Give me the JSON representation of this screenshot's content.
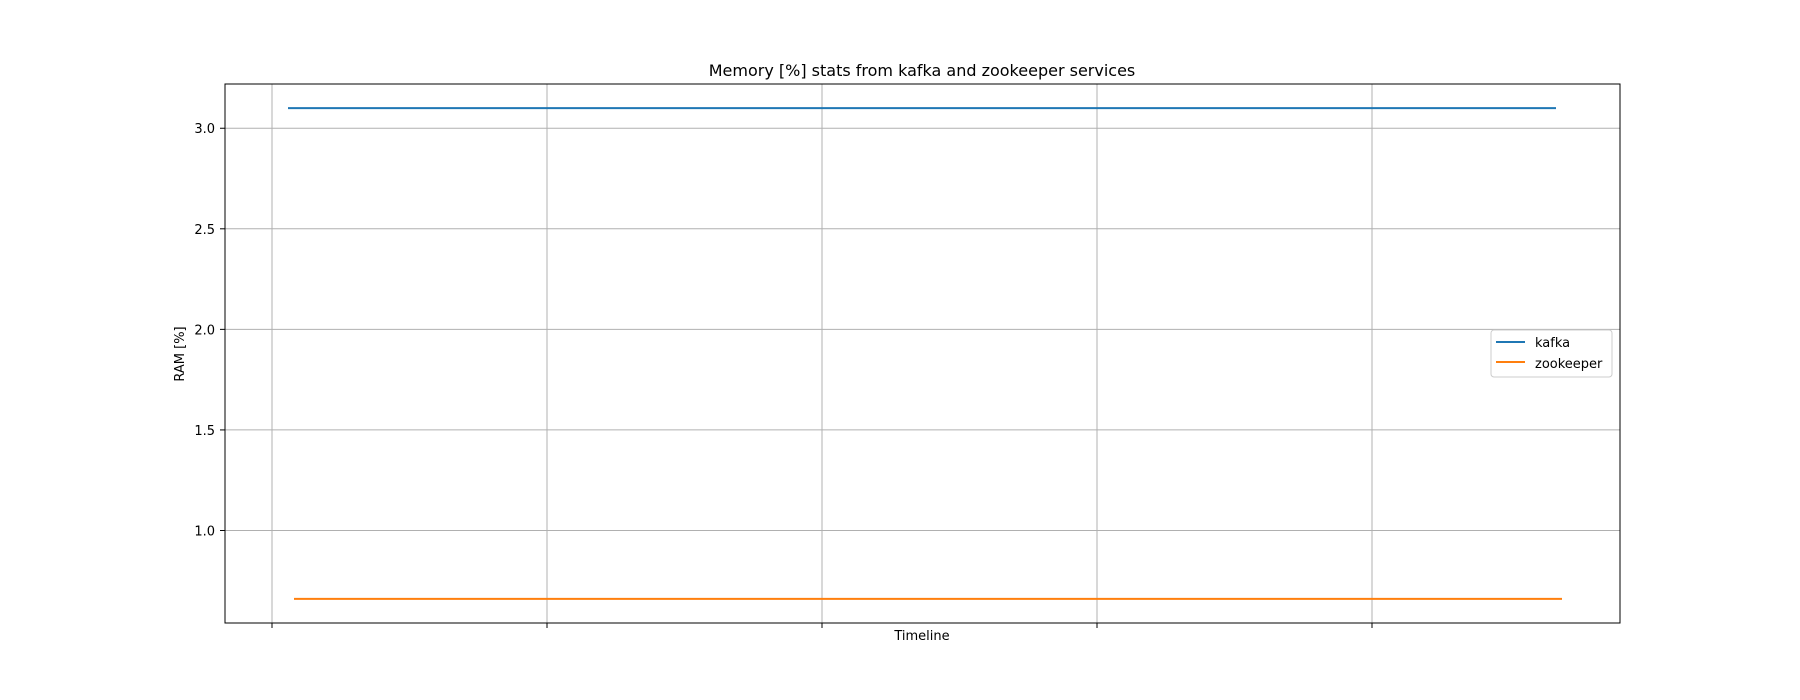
{
  "chart_data": {
    "type": "line",
    "title": "Memory [%] stats from kafka and zookeeper services",
    "xlabel": "Timeline",
    "ylabel": "RAM [%]",
    "ylim": [
      0.54,
      3.22
    ],
    "yticks": [
      1.0,
      1.5,
      2.0,
      2.5,
      3.0
    ],
    "ytick_labels": [
      "1.0",
      "1.5",
      "2.0",
      "2.5",
      "3.0"
    ],
    "x_tick_labels_shown": false,
    "grid": true,
    "legend_position": "center-right",
    "series": [
      {
        "name": "kafka",
        "color": "#1f77b4",
        "x": [
          0.0,
          1.0
        ],
        "values": [
          3.1,
          3.1
        ]
      },
      {
        "name": "zookeeper",
        "color": "#ff7f0e",
        "x": [
          0.0,
          1.0
        ],
        "values": [
          0.66,
          0.66
        ]
      }
    ]
  }
}
